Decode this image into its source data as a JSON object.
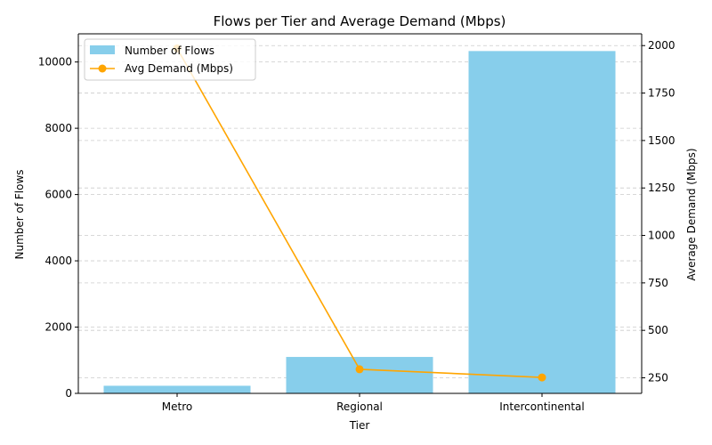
{
  "chart_data": {
    "type": "bar",
    "title": "Flows per Tier and Average Demand (Mbps)",
    "xlabel": "Tier",
    "ylabel": "Number of Flows",
    "y2label": "Average Demand (Mbps)",
    "categories": [
      "Metro",
      "Regional",
      "Intercontinental"
    ],
    "ylim": [
      0,
      10850
    ],
    "y2lim": [
      168,
      2062
    ],
    "yticks": [
      0,
      2000,
      4000,
      6000,
      8000,
      10000
    ],
    "y2ticks": [
      250,
      500,
      750,
      1000,
      1250,
      1500,
      1750,
      2000
    ],
    "grid": "horizontal dashed (secondary axis)",
    "legend_position": "top-left",
    "series": [
      {
        "name": "Number of Flows",
        "type": "bar",
        "axis": "left",
        "color": "#87ceeb",
        "values": [
          230,
          1100,
          10330
        ]
      },
      {
        "name": "Avg Demand (Mbps)",
        "type": "line",
        "axis": "right",
        "color": "#ffa500",
        "marker": "circle",
        "values": [
          1985,
          295,
          252
        ]
      }
    ]
  }
}
